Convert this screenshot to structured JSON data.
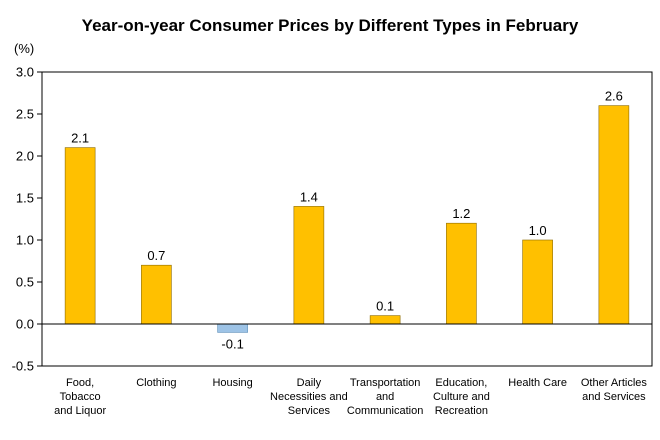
{
  "chart_data": {
    "type": "bar",
    "title": "Year-on-year Consumer Prices by Different Types in February",
    "unit": "(%)",
    "categories": [
      [
        "Food,",
        "Tobacco",
        "and Liquor"
      ],
      [
        "Clothing"
      ],
      [
        "Housing"
      ],
      [
        "Daily",
        "Necessities and",
        "Services"
      ],
      [
        "Transportation",
        "and",
        "Communication"
      ],
      [
        "Education,",
        "Culture and",
        "Recreation"
      ],
      [
        "Health Care"
      ],
      [
        "Other Articles",
        "and Services"
      ]
    ],
    "values": [
      2.1,
      0.7,
      -0.1,
      1.4,
      0.1,
      1.2,
      1.0,
      2.6
    ],
    "value_labels": [
      "2.1",
      "0.7",
      "-0.1",
      "1.4",
      "0.1",
      "1.2",
      "1.0",
      "2.6"
    ],
    "ylim": [
      -0.5,
      3.0
    ],
    "yticks": [
      "3.0",
      "2.5",
      "2.0",
      "1.5",
      "1.0",
      "0.5",
      "0.0",
      "-0.5"
    ],
    "ytick_values": [
      3.0,
      2.5,
      2.0,
      1.5,
      1.0,
      0.5,
      0.0,
      -0.5
    ],
    "grid": false,
    "colors": {
      "positive": "#FFC000",
      "negative": "#9DC3E6",
      "bar_border": "#8C6A00",
      "neg_border": "#5B8DB8"
    }
  }
}
